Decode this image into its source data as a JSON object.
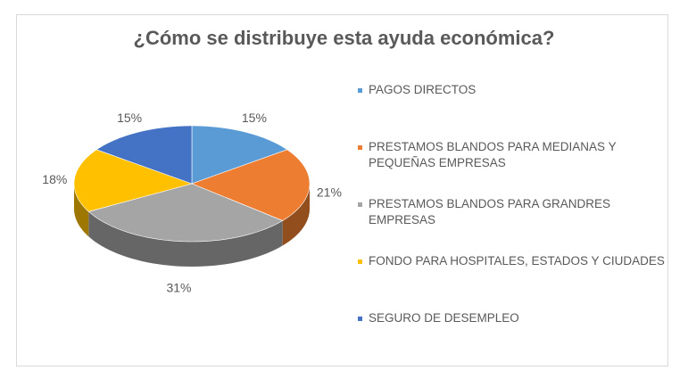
{
  "chart_data": {
    "type": "pie",
    "title": "¿Cómo se distribuye esta ayuda económica?",
    "categories": [
      "PAGOS DIRECTOS",
      "PRESTAMOS BLANDOS PARA MEDIANAS Y PEQUEÑAS EMPRESAS",
      "PRESTAMOS BLANDOS PARA GRANDRES EMPRESAS",
      "FONDO PARA HOSPITALES, ESTADOS Y CIUDADES",
      "SEGURO DE DESEMPLEO"
    ],
    "values": [
      15,
      21,
      31,
      18,
      15
    ],
    "labels": [
      "15%",
      "21%",
      "31%",
      "18%",
      "15%"
    ],
    "colors": [
      "#5b9bd5",
      "#ed7d31",
      "#a5a5a5",
      "#ffc000",
      "#4472c4"
    ],
    "legend_placement": "right",
    "style": "3d-pie"
  }
}
